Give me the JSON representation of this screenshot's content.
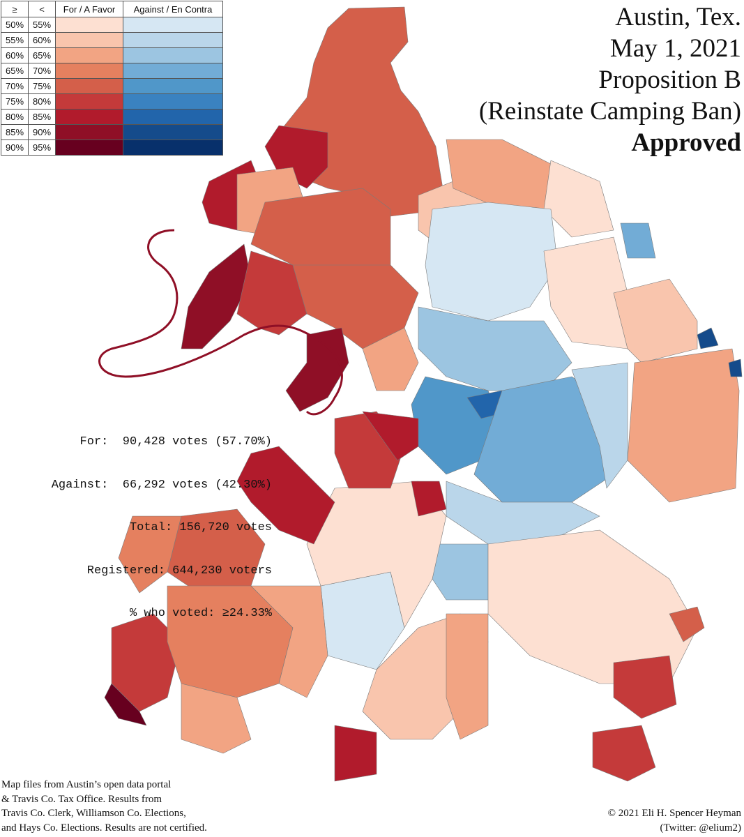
{
  "legend": {
    "header_min": "≥",
    "header_max": "<",
    "header_for": "For / A Favor",
    "header_against": "Against / En Contra",
    "rows": [
      {
        "min": "50%",
        "max": "55%",
        "for_color": "#fde0d2",
        "against_color": "#d6e7f3"
      },
      {
        "min": "55%",
        "max": "60%",
        "for_color": "#f9c5ad",
        "against_color": "#bad6ea"
      },
      {
        "min": "60%",
        "max": "65%",
        "for_color": "#f2a483",
        "against_color": "#9cc5e1"
      },
      {
        "min": "65%",
        "max": "70%",
        "for_color": "#e5805f",
        "against_color": "#72acd6"
      },
      {
        "min": "70%",
        "max": "75%",
        "for_color": "#d45f4a",
        "against_color": "#5097c9"
      },
      {
        "min": "75%",
        "max": "80%",
        "for_color": "#c43a3a",
        "against_color": "#3a82c0"
      },
      {
        "min": "80%",
        "max": "85%",
        "for_color": "#b11b2c",
        "against_color": "#2265ab"
      },
      {
        "min": "85%",
        "max": "90%",
        "for_color": "#8f0f26",
        "against_color": "#154b8b"
      },
      {
        "min": "90%",
        "max": "95%",
        "for_color": "#67001f",
        "against_color": "#08306b"
      }
    ]
  },
  "title": {
    "city": "Austin, Tex.",
    "date": "May 1, 2021",
    "measure": "Proposition B",
    "description": "(Reinstate Camping Ban)",
    "result": "Approved"
  },
  "stats": [
    "For:  90,428 votes (57.70%)",
    "Against:  66,292 votes (42.30%)",
    "Total: 156,720 votes",
    "Registered: 644,230 voters",
    "% who voted: ≥24.33%"
  ],
  "credits": {
    "sources": [
      "Map files from Austin’s open data portal",
      "& Travis Co. Tax Office. Results from",
      "Travis Co. Clerk, Williamson Co. Elections,",
      "and Hays Co. Elections. Results are not certified."
    ],
    "copyright": "© 2021 Eli H. Spencer Heyman",
    "twitter": "(Twitter: @elium2)"
  },
  "map_colors": {
    "for_50": "#fde0d2",
    "for_55": "#f9c5ad",
    "for_60": "#f2a483",
    "for_65": "#e5805f",
    "for_70": "#d45f4a",
    "for_75": "#c43a3a",
    "for_80": "#b11b2c",
    "for_85": "#8f0f26",
    "for_90": "#67001f",
    "against_50": "#d6e7f3",
    "against_55": "#bad6ea",
    "against_60": "#9cc5e1",
    "against_65": "#72acd6",
    "against_70": "#5097c9",
    "against_75": "#3a82c0",
    "against_80": "#2265ab",
    "against_85": "#154b8b"
  }
}
